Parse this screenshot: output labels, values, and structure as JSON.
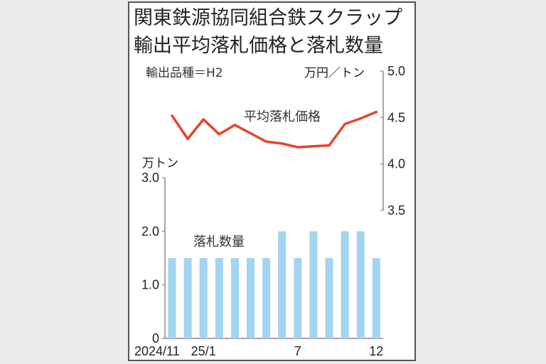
{
  "title_line1": "関東鉄源協同組合鉄スクラップ",
  "title_line2": "輸出平均落札価格と落札数量",
  "subtitle": "輸出品種＝H2",
  "right_axis_unit": "万円／トン",
  "left_axis_unit": "万トン",
  "colors": {
    "line": "#e8442a",
    "bar": "#a3d4f0",
    "frame": "#555555",
    "background": "#ededed"
  },
  "chart_data": [
    {
      "type": "line",
      "title": "平均落札価格",
      "series_label": "平均落札価格",
      "ylabel": "万円／トン",
      "axis_side": "right",
      "ylim": [
        3.5,
        5.0
      ],
      "yticks": [
        "5.0",
        "4.5",
        "4.0",
        "3.5"
      ],
      "categories": [
        "2024/11",
        "2024/12",
        "2025/1",
        "2025/2",
        "2025/3",
        "2025/4",
        "2025/5",
        "2025/6",
        "2025/7",
        "2025/8",
        "2025/9",
        "2025/10",
        "2025/11",
        "2025/12"
      ],
      "values": [
        4.52,
        4.27,
        4.48,
        4.32,
        4.42,
        4.33,
        4.24,
        4.22,
        4.18,
        4.19,
        4.2,
        4.43,
        4.49,
        4.56
      ]
    },
    {
      "type": "bar",
      "title": "落札数量",
      "series_label": "落札数量",
      "ylabel": "万トン",
      "axis_side": "left",
      "ylim": [
        0,
        3.0
      ],
      "yticks": [
        "3.0",
        "2.0",
        "1.0",
        "0"
      ],
      "categories": [
        "2024/11",
        "2024/12",
        "2025/1",
        "2025/2",
        "2025/3",
        "2025/4",
        "2025/5",
        "2025/6",
        "2025/7",
        "2025/8",
        "2025/9",
        "2025/10",
        "2025/11",
        "2025/12"
      ],
      "values": [
        1.5,
        1.5,
        1.5,
        1.5,
        1.5,
        1.5,
        1.5,
        2.0,
        1.5,
        2.0,
        1.5,
        2.0,
        2.0,
        1.5
      ],
      "xtick_labels": [
        {
          "index": 0,
          "label": "2024/11"
        },
        {
          "index": 2,
          "label": "25/1"
        },
        {
          "index": 8,
          "label": "7"
        },
        {
          "index": 13,
          "label": "12"
        }
      ]
    }
  ]
}
